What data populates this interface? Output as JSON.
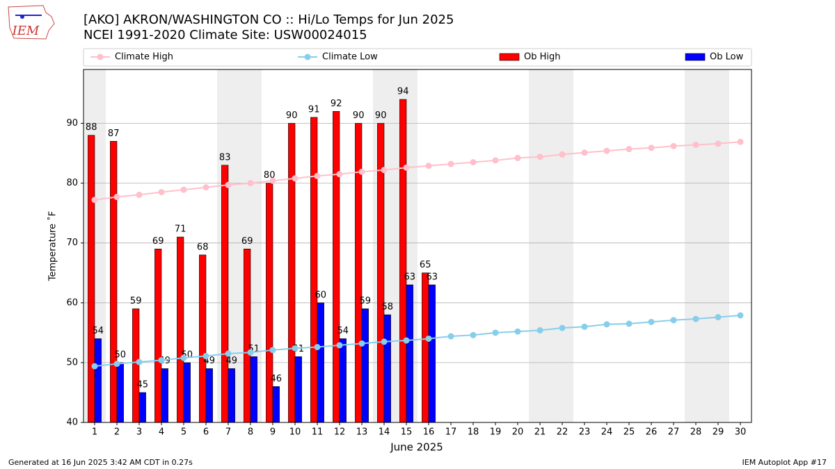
{
  "logo_text": "IEM",
  "footer_left": "Generated at 16 Jun 2025 3:42 AM CDT in 0.27s",
  "footer_right": "IEM Autoplot App #17",
  "chart_data": {
    "type": "bar",
    "title": "[AKO] AKRON/WASHINGTON CO :: Hi/Lo Temps for Jun 2025",
    "subtitle": "NCEI 1991-2020 Climate Site: USW00024015",
    "x_label": "June 2025",
    "y_label": "Temperature ˚F",
    "x": [
      1,
      2,
      3,
      4,
      5,
      6,
      7,
      8,
      9,
      10,
      11,
      12,
      13,
      14,
      15,
      16,
      17,
      18,
      19,
      20,
      21,
      22,
      23,
      24,
      25,
      26,
      27,
      28,
      29,
      30
    ],
    "xlim": [
      0.5,
      30.5
    ],
    "xticks": [
      1,
      2,
      3,
      4,
      5,
      6,
      7,
      8,
      9,
      10,
      11,
      12,
      13,
      14,
      15,
      16,
      17,
      18,
      19,
      20,
      21,
      22,
      23,
      24,
      25,
      26,
      27,
      28,
      29,
      30
    ],
    "ylim": [
      40,
      99
    ],
    "yticks": [
      40,
      50,
      60,
      70,
      80,
      90
    ],
    "grid": true,
    "legend": "top",
    "shaded_days": [
      1,
      7,
      8,
      14,
      15,
      21,
      22,
      28,
      29
    ],
    "shade_color": "#eeeeee",
    "series": [
      {
        "name": "Climate High",
        "type": "line",
        "color": "#ffc0cb",
        "values": [
          77.2,
          77.7,
          78.05,
          78.5,
          78.9,
          79.3,
          79.7,
          80.0,
          80.4,
          80.8,
          81.2,
          81.5,
          81.9,
          82.2,
          82.6,
          82.9,
          83.2,
          83.5,
          83.8,
          84.2,
          84.4,
          84.8,
          85.1,
          85.4,
          85.7,
          85.9,
          86.2,
          86.4,
          86.6,
          86.9
        ]
      },
      {
        "name": "Climate Low",
        "type": "line",
        "color": "#87ceeb",
        "values": [
          49.4,
          49.8,
          50.1,
          50.4,
          50.8,
          51.1,
          51.5,
          51.7,
          52.1,
          52.4,
          52.6,
          52.9,
          53.2,
          53.5,
          53.7,
          54.0,
          54.4,
          54.6,
          55.0,
          55.2,
          55.4,
          55.8,
          56.0,
          56.4,
          56.5,
          56.8,
          57.1,
          57.3,
          57.6,
          57.9
        ]
      },
      {
        "name": "Ob High",
        "type": "bar",
        "color": "#ff0000",
        "values": [
          88,
          87,
          59,
          69,
          71,
          68,
          83,
          69,
          80,
          90,
          91,
          92,
          90,
          90,
          94,
          65,
          null,
          null,
          null,
          null,
          null,
          null,
          null,
          null,
          null,
          null,
          null,
          null,
          null,
          null
        ]
      },
      {
        "name": "Ob Low",
        "type": "bar",
        "color": "#0000ff",
        "values": [
          54,
          50,
          45,
          49,
          50,
          49,
          49,
          51,
          46,
          51,
          60,
          54,
          59,
          58,
          63,
          63,
          null,
          null,
          null,
          null,
          null,
          null,
          null,
          null,
          null,
          null,
          null,
          null,
          null,
          null
        ]
      }
    ]
  }
}
